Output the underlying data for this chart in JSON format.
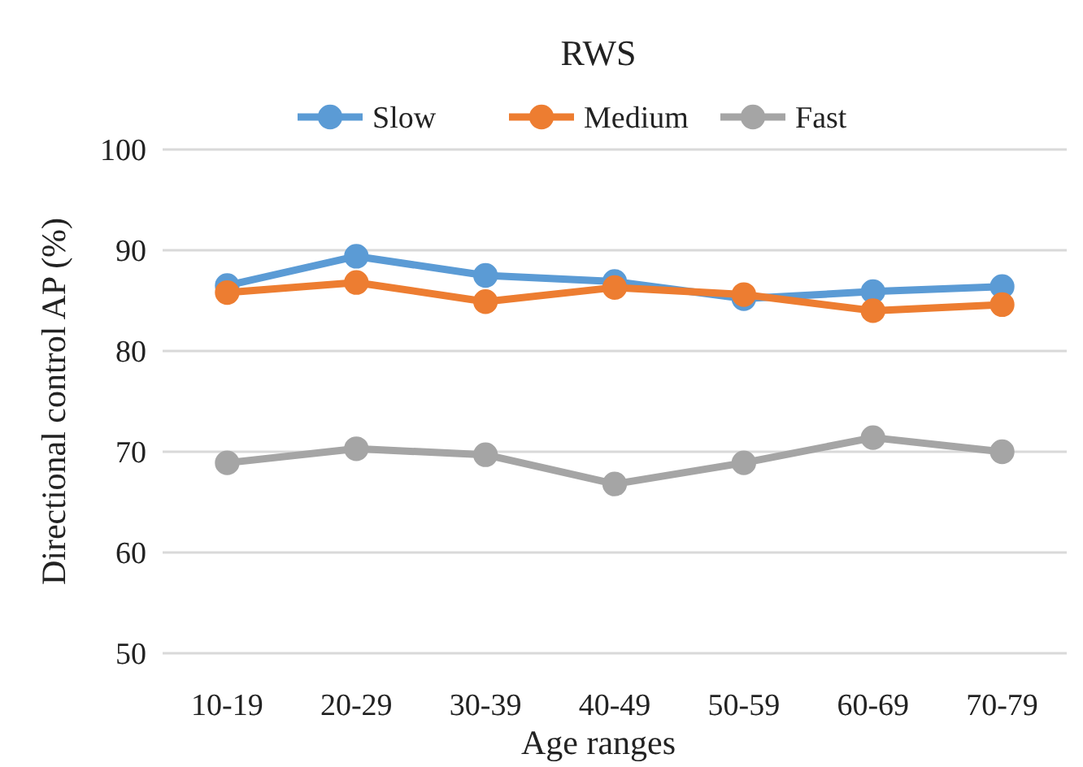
{
  "chart_data": {
    "type": "line",
    "title": "RWS",
    "xlabel": "Age ranges",
    "ylabel": "Directional control AP (%)",
    "categories": [
      "10-19",
      "20-29",
      "30-39",
      "40-49",
      "50-59",
      "60-69",
      "70-79"
    ],
    "series": [
      {
        "name": "Slow",
        "color": "#5b9bd5",
        "values": [
          86.5,
          89.4,
          87.5,
          86.9,
          85.2,
          85.9,
          86.4
        ]
      },
      {
        "name": "Medium",
        "color": "#ed7d31",
        "values": [
          85.8,
          86.8,
          84.9,
          86.3,
          85.6,
          84.0,
          84.6
        ]
      },
      {
        "name": "Fast",
        "color": "#a5a5a5",
        "values": [
          68.9,
          70.3,
          69.7,
          66.8,
          68.9,
          71.4,
          70.0
        ]
      }
    ],
    "ylim": [
      50,
      100
    ],
    "yticks": [
      50,
      60,
      70,
      80,
      90,
      100
    ],
    "grid": "y",
    "legend": "top",
    "marker": "circle",
    "line_style": "solid"
  }
}
